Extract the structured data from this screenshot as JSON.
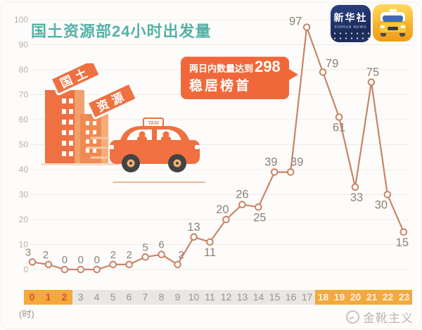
{
  "header": {
    "title": "国土资源部24小时出发量"
  },
  "callout": {
    "prefix": "两日内数量达到",
    "number": "298",
    "line2": "稳居榜首"
  },
  "app_icons": {
    "xinhua": {
      "name": "新华社",
      "subtitle": "XINHUA NEWS"
    },
    "car_app": {
      "label": ""
    }
  },
  "illustration": {
    "building_label_1": "国土",
    "building_label_2": "资源",
    "taxi_sign": "TAXI"
  },
  "watermark": {
    "text": "金靴主义"
  },
  "colors": {
    "accent_orange": "#ef7041",
    "title_teal": "#55b1a7",
    "band_orange": "#f3a93c",
    "band_gray": "#e9e7e3",
    "line": "#c9english8165",
    "line_stroke": "#c98467",
    "marker_fill": "#fffdf9",
    "point_label": "#8d8174",
    "grid": "#edebe6",
    "ytick_text": "#b5b0a8"
  },
  "chart_data": {
    "type": "line",
    "title": "国土资源部24小时出发量",
    "x": [
      "0",
      "1",
      "2",
      "3",
      "4",
      "5",
      "6",
      "7",
      "8",
      "9",
      "10",
      "11",
      "12",
      "13",
      "14",
      "15",
      "16",
      "17",
      "18",
      "19",
      "20",
      "21",
      "22",
      "23"
    ],
    "values": [
      3,
      2,
      0,
      0,
      0,
      2,
      2,
      5,
      6,
      2,
      13,
      11,
      20,
      26,
      25,
      39,
      39,
      97,
      79,
      61,
      33,
      75,
      30,
      15
    ],
    "yticks": [
      0,
      10,
      20,
      30,
      40,
      50,
      60,
      70,
      80,
      90,
      100
    ],
    "ylim": [
      0,
      100
    ],
    "xlabel_unit": "(时)",
    "grid": true,
    "legend": "none",
    "highlight_early": [
      0,
      2
    ],
    "highlight_late": [
      18,
      23
    ],
    "annotation": {
      "text": "两日内数量达到298 稳居榜首",
      "points_to_hour": 17
    },
    "label_side": [
      "a",
      "a",
      "a",
      "a",
      "a",
      "a",
      "a",
      "a",
      "a",
      "a",
      "a",
      "b",
      "a",
      "a",
      "b",
      "a",
      "a",
      "a",
      "a",
      "b",
      "b",
      "a",
      "b",
      "b"
    ],
    "label_dx": [
      -6,
      -4,
      0,
      0,
      0,
      0,
      0,
      0,
      0,
      5,
      0,
      0,
      -5,
      0,
      2,
      -5,
      9,
      -16,
      13,
      0,
      2,
      2,
      -9,
      -2
    ],
    "label_dy": [
      0,
      0,
      0,
      0,
      0,
      0,
      0,
      0,
      0,
      0,
      0,
      0,
      0,
      0,
      0,
      0,
      0,
      6,
      2,
      0,
      0,
      0,
      0,
      0
    ]
  }
}
